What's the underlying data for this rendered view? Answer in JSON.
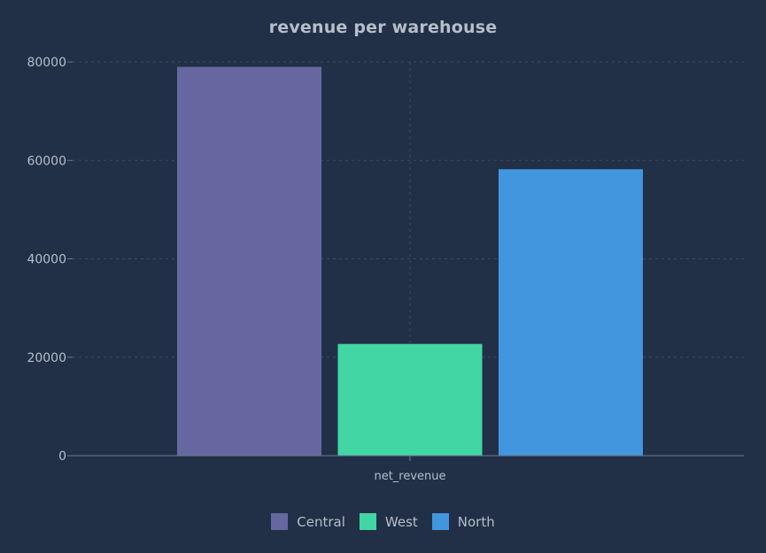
{
  "chart_data": {
    "type": "bar",
    "title": "revenue per warehouse",
    "categories": [
      "net_revenue"
    ],
    "series": [
      {
        "name": "Central",
        "values": [
          79000
        ],
        "color": "#6667a0"
      },
      {
        "name": "West",
        "values": [
          22700
        ],
        "color": "#41d6a3"
      },
      {
        "name": "North",
        "values": [
          58200
        ],
        "color": "#4296dd"
      }
    ],
    "xlabel": "",
    "ylabel": "",
    "ylim": [
      0,
      80000
    ],
    "yticks": [
      "0",
      "20000",
      "40000",
      "60000",
      "80000"
    ],
    "grid": true,
    "legend_position": "bottom"
  },
  "colors": {
    "background": "#213047",
    "text": "#b8bec9",
    "grid": "#3a4a63",
    "axis": "#6b7890"
  }
}
